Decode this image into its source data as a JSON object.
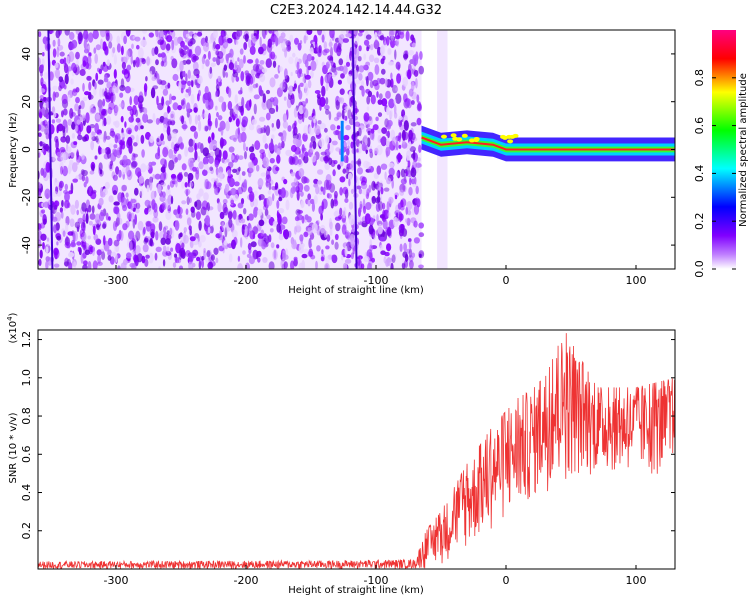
{
  "title": "C2E3.2024.142.14.44.G32",
  "chart_data": [
    {
      "type": "heatmap",
      "name": "spectrogram",
      "xlabel": "Height of straight line (km)",
      "ylabel": "Frequency (Hz)",
      "xlim": [
        -360,
        130
      ],
      "ylim": [
        -50,
        50
      ],
      "x_ticks": [
        -300,
        -200,
        -100,
        0,
        100
      ],
      "y_ticks": [
        -40,
        -20,
        0,
        20,
        40
      ],
      "noise_region_km": [
        -360,
        -65
      ],
      "gap_km": [
        -58,
        -53
      ],
      "signal_line": [
        {
          "x": -65,
          "y": 5
        },
        {
          "x": -50,
          "y": 2
        },
        {
          "x": -30,
          "y": 3
        },
        {
          "x": -10,
          "y": 2
        },
        {
          "x": 0,
          "y": 0
        },
        {
          "x": 20,
          "y": 0
        },
        {
          "x": 60,
          "y": 0
        },
        {
          "x": 100,
          "y": 0
        },
        {
          "x": 130,
          "y": 0
        }
      ],
      "colorbar": {
        "label": "Normalized spectral amplitude",
        "range": [
          0.0,
          1.0
        ],
        "ticks": [
          0.0,
          0.2,
          0.4,
          0.6,
          0.8
        ],
        "colors": [
          "#ffffff",
          "#8000ff",
          "#0000ff",
          "#00ffff",
          "#00ff00",
          "#ffff00",
          "#ff0000",
          "#ff0080"
        ]
      }
    },
    {
      "type": "line",
      "name": "snr",
      "xlabel": "Height of straight line (km)",
      "ylabel": "SNR (10 * v/v)",
      "multiplier_label": "(x10",
      "multiplier_exp": "4",
      "xlim": [
        -360,
        130
      ],
      "ylim": [
        0.0,
        1.25
      ],
      "x_ticks": [
        -300,
        -200,
        -100,
        0,
        100
      ],
      "y_ticks": [
        0.2,
        0.4,
        0.6,
        0.8,
        1.0,
        1.2
      ],
      "color": "#ee3333",
      "envelope": [
        {
          "x": -360,
          "low": 0.0,
          "high": 0.04
        },
        {
          "x": -130,
          "low": 0.0,
          "high": 0.045
        },
        {
          "x": -70,
          "low": 0.0,
          "high": 0.05
        },
        {
          "x": -62,
          "low": 0.0,
          "high": 0.2
        },
        {
          "x": -50,
          "low": 0.02,
          "high": 0.3
        },
        {
          "x": -30,
          "low": 0.1,
          "high": 0.55
        },
        {
          "x": -10,
          "low": 0.2,
          "high": 0.75
        },
        {
          "x": 10,
          "low": 0.3,
          "high": 0.9
        },
        {
          "x": 30,
          "low": 0.4,
          "high": 1.0
        },
        {
          "x": 45,
          "low": 0.45,
          "high": 1.25
        },
        {
          "x": 70,
          "low": 0.5,
          "high": 0.95
        },
        {
          "x": 100,
          "low": 0.5,
          "high": 0.95
        },
        {
          "x": 130,
          "low": 0.45,
          "high": 1.0
        }
      ]
    }
  ]
}
